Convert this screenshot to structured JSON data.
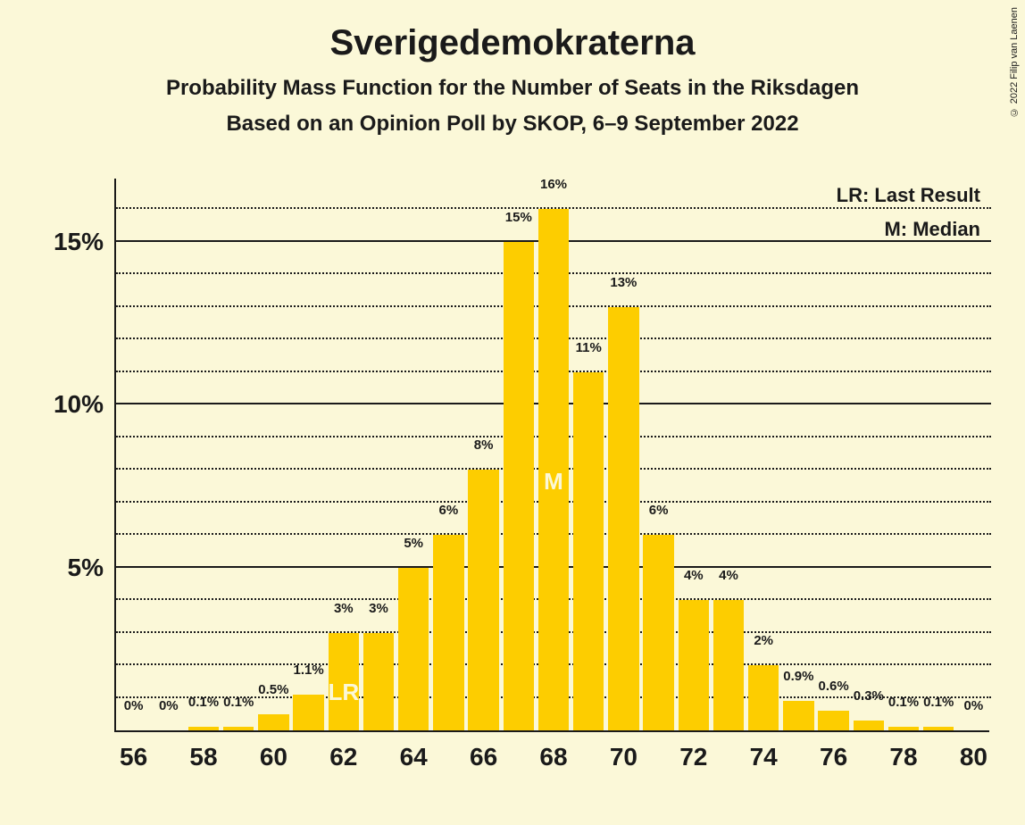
{
  "copyright": "© 2022 Filip van Laenen",
  "title": {
    "text": "Sverigedemokraterna",
    "fontsize": 40
  },
  "subtitle1": {
    "text": "Probability Mass Function for the Number of Seats in the Riksdagen",
    "fontsize": 24
  },
  "subtitle2": {
    "text": "Based on an Opinion Poll by SKOP, 6–9 September 2022",
    "fontsize": 24
  },
  "legend": {
    "lr": "LR: Last Result",
    "m": "M: Median",
    "fontsize": 22
  },
  "chart": {
    "type": "bar",
    "background_color": "#fbf8d8",
    "bar_color": "#fdcd00",
    "text_color": "#1a1a1a",
    "marker_color": "#fbf8d8",
    "axis_fontsize": 28,
    "barlabel_fontsize": 15,
    "marker_fontsize": 26,
    "x": {
      "min": 56,
      "max": 80,
      "ticks": [
        56,
        58,
        60,
        62,
        64,
        66,
        68,
        70,
        72,
        74,
        76,
        78,
        80
      ]
    },
    "y": {
      "min": 0,
      "max": 17,
      "major_ticks": [
        5,
        10,
        15
      ],
      "minor_step": 1,
      "label_suffix": "%"
    },
    "bars": [
      {
        "x": 56,
        "v": 0,
        "label": "0%"
      },
      {
        "x": 57,
        "v": 0,
        "label": "0%"
      },
      {
        "x": 58,
        "v": 0.1,
        "label": "0.1%"
      },
      {
        "x": 59,
        "v": 0.1,
        "label": "0.1%"
      },
      {
        "x": 60,
        "v": 0.5,
        "label": "0.5%"
      },
      {
        "x": 61,
        "v": 1.1,
        "label": "1.1%"
      },
      {
        "x": 62,
        "v": 3,
        "label": "3%",
        "marker": "LR"
      },
      {
        "x": 63,
        "v": 3,
        "label": "3%"
      },
      {
        "x": 64,
        "v": 5,
        "label": "5%"
      },
      {
        "x": 65,
        "v": 6,
        "label": "6%"
      },
      {
        "x": 66,
        "v": 8,
        "label": "8%"
      },
      {
        "x": 67,
        "v": 15,
        "label": "15%"
      },
      {
        "x": 68,
        "v": 16,
        "label": "16%",
        "marker": "M"
      },
      {
        "x": 69,
        "v": 11,
        "label": "11%"
      },
      {
        "x": 70,
        "v": 13,
        "label": "13%"
      },
      {
        "x": 71,
        "v": 6,
        "label": "6%"
      },
      {
        "x": 72,
        "v": 4,
        "label": "4%"
      },
      {
        "x": 73,
        "v": 4,
        "label": "4%"
      },
      {
        "x": 74,
        "v": 2,
        "label": "2%"
      },
      {
        "x": 75,
        "v": 0.9,
        "label": "0.9%"
      },
      {
        "x": 76,
        "v": 0.6,
        "label": "0.6%"
      },
      {
        "x": 77,
        "v": 0.3,
        "label": "0.3%"
      },
      {
        "x": 78,
        "v": 0.1,
        "label": "0.1%"
      },
      {
        "x": 79,
        "v": 0.1,
        "label": "0.1%"
      },
      {
        "x": 80,
        "v": 0,
        "label": "0%"
      }
    ],
    "bar_width_ratio": 0.88
  }
}
